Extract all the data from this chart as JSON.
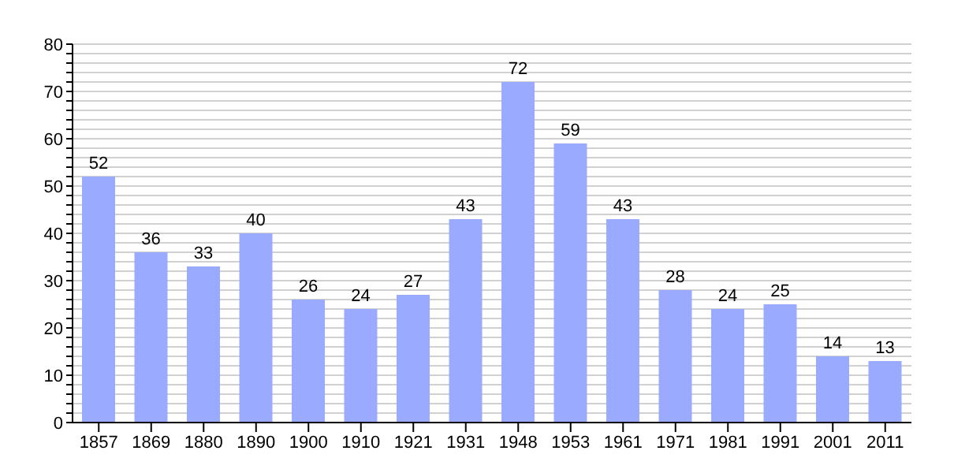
{
  "chart_data": {
    "type": "bar",
    "categories": [
      "1857",
      "1869",
      "1880",
      "1890",
      "1900",
      "1910",
      "1921",
      "1931",
      "1948",
      "1953",
      "1961",
      "1971",
      "1981",
      "1991",
      "2001",
      "2011"
    ],
    "values": [
      52,
      36,
      33,
      40,
      26,
      24,
      27,
      43,
      72,
      59,
      43,
      28,
      24,
      25,
      14,
      13
    ],
    "color": "#99aaff",
    "data_labels": true,
    "grid": "y",
    "ylim": [
      0,
      80
    ],
    "yticks": [
      0,
      {
        "value": 2,
        "label": null
      },
      {
        "value": 4,
        "label": null
      },
      {
        "value": 6,
        "label": null
      },
      {
        "value": 8,
        "label": null
      },
      10,
      {
        "value": 12,
        "label": null
      },
      {
        "value": 14,
        "label": null
      },
      {
        "value": 16,
        "label": null
      },
      {
        "value": 18,
        "label": null
      },
      20,
      {
        "value": 22,
        "label": null
      },
      {
        "value": 24,
        "label": null
      },
      {
        "value": 26,
        "label": null
      },
      {
        "value": 28,
        "label": null
      },
      30,
      {
        "value": 32,
        "label": null
      },
      {
        "value": 34,
        "label": null
      },
      {
        "value": 36,
        "label": null
      },
      {
        "value": 38,
        "label": null
      },
      40,
      {
        "value": 42,
        "label": null
      },
      {
        "value": 44,
        "label": null
      },
      {
        "value": 46,
        "label": null
      },
      {
        "value": 48,
        "label": null
      },
      50,
      {
        "value": 52,
        "label": null
      },
      {
        "value": 54,
        "label": null
      },
      {
        "value": 56,
        "label": null
      },
      {
        "value": 58,
        "label": null
      },
      60,
      {
        "value": 62,
        "label": null
      },
      {
        "value": 64,
        "label": null
      },
      {
        "value": 66,
        "label": null
      },
      {
        "value": 68,
        "label": null
      },
      70,
      {
        "value": 72,
        "label": null
      },
      {
        "value": 74,
        "label": null
      },
      {
        "value": 76,
        "label": null
      },
      {
        "value": 78,
        "label": null
      },
      80
    ]
  }
}
